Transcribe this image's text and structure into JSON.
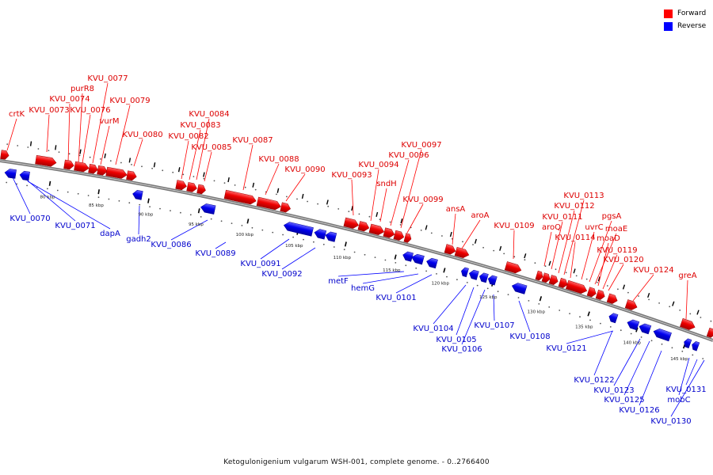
{
  "legend": {
    "forward_label": "Forward",
    "reverse_label": "Reverse",
    "forward_color": "#ff0000",
    "reverse_color": "#0000ff"
  },
  "caption": "Ketogulonigenium vulgarum WSH-001, complete genome. - 0..2766400",
  "scale_labels": [
    "80 kbp",
    "85 kbp",
    "90 kbp",
    "95 kbp",
    "100 kbp",
    "105 kbp",
    "110 kbp",
    "115 kbp",
    "120 kbp",
    "125 kbp",
    "130 kbp",
    "135 kbp",
    "140 kbp",
    "145 kbp"
  ],
  "forward_genes": [
    "crtK",
    "KVU_0073",
    "KVU_0074",
    "purR8",
    "KVU_0077",
    "KVU_0076",
    "vurM",
    "KVU_0079",
    "KVU_0080",
    "KVU_0082",
    "KVU_0083",
    "KVU_0084",
    "KVU_0085",
    "KVU_0087",
    "KVU_0088",
    "KVU_0090",
    "KVU_0093",
    "KVU_0094",
    "sndH",
    "KVU_0096",
    "KVU_0097",
    "KVU_0099",
    "ansA",
    "aroA",
    "KVU_0109",
    "aroQ",
    "KVU_0111",
    "KVU_0112",
    "KVU_0113",
    "KVU_0114",
    "uvrC",
    "pgsA",
    "moaE",
    "moaD",
    "KVU_0119",
    "KVU_0120",
    "KVU_0124",
    "greA"
  ],
  "reverse_genes": [
    "KVU_0070",
    "KVU_0071",
    "dapA",
    "gadh2",
    "KVU_0086",
    "KVU_0089",
    "KVU_0091",
    "KVU_0092",
    "metF",
    "hemG",
    "KVU_0101",
    "KVU_0104",
    "KVU_0105",
    "KVU_0106",
    "KVU_0107",
    "KVU_0108",
    "KVU_0121",
    "KVU_0122",
    "KVU_0123",
    "KVU_0125",
    "KVU_0126",
    "mobC",
    "KVU_0131",
    "KVU_0130"
  ]
}
